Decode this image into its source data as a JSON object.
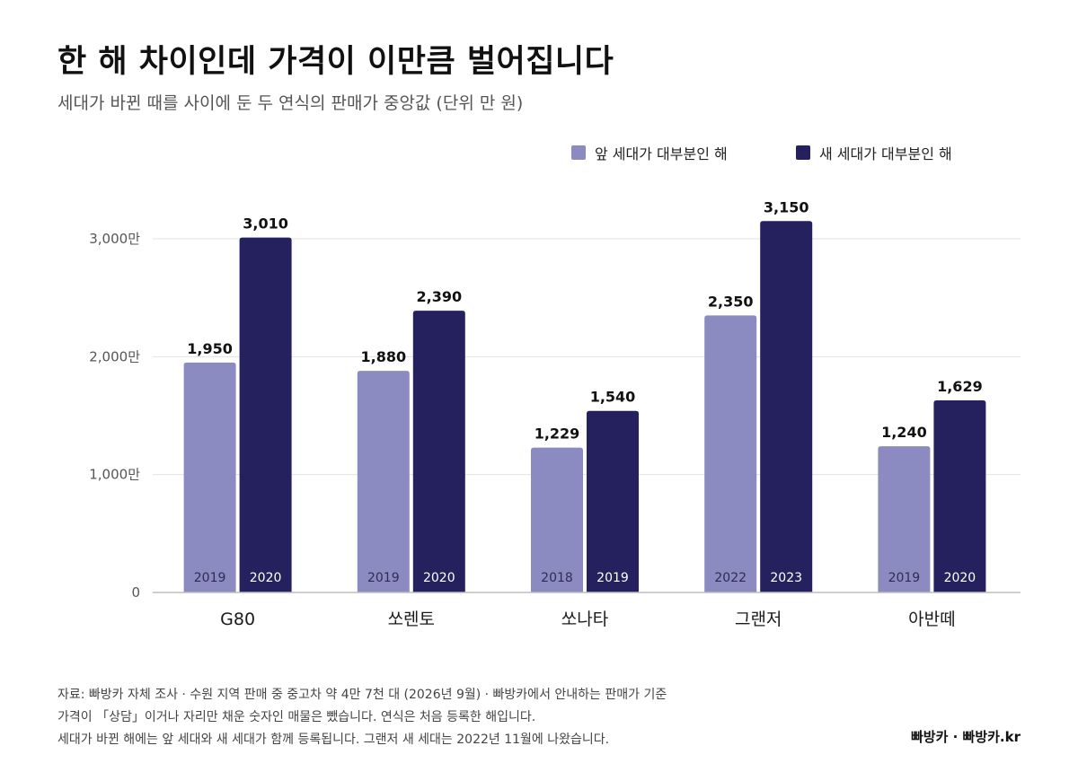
{
  "title": "한 해 차이인데 가격이 이만큼 벌어집니다",
  "subtitle": "세대가 바뀐 때를 사이에 둔 두 연식의 판매가 중앙값 (단위 만 원)",
  "colors": {
    "previous": "#8b8bc2",
    "new": "#25215e",
    "grid": "#e2e2e2",
    "axis": "#bdbdbd"
  },
  "chart_data": {
    "type": "bar",
    "categories": [
      "G80",
      "쏘렌토",
      "쏘나타",
      "그랜저",
      "아반떼"
    ],
    "series": [
      {
        "name": "앞 세대가 대부분인 해",
        "values": [
          1950,
          1880,
          1229,
          2350,
          1240
        ],
        "years": [
          "2019",
          "2019",
          "2018",
          "2022",
          "2019"
        ],
        "labels": [
          "1,950",
          "1,880",
          "1,229",
          "2,350",
          "1,240"
        ]
      },
      {
        "name": "새 세대가 대부분인 해",
        "values": [
          3010,
          2390,
          1540,
          3150,
          1629
        ],
        "years": [
          "2020",
          "2020",
          "2019",
          "2023",
          "2020"
        ],
        "labels": [
          "3,010",
          "2,390",
          "1,540",
          "3,150",
          "1,629"
        ]
      }
    ],
    "yticks": [
      0,
      1000,
      2000,
      3000
    ],
    "ytick_labels": [
      "0",
      "1,000만",
      "2,000만",
      "3,000만"
    ],
    "ylim": [
      0,
      3000
    ],
    "grid": true,
    "legend_position": "top-right"
  },
  "footer": {
    "line1": "자료: 빠방카 자체 조사 · 수원 지역 판매 중 중고차 약 4만 7천 대 (2026년 9월) · 빠방카에서 안내하는 판매가 기준",
    "line2": "가격이 「상담」이거나 자리만 채운 숫자인 매물은 뺐습니다. 연식은 처음 등록한 해입니다.",
    "line3": "세대가 바뀐 해에는 앞 세대와 새 세대가 함께 등록됩니다. 그랜저 새 세대는 2022년 11월에 나왔습니다."
  },
  "brand": "빠방카 · 빠방카.kr"
}
